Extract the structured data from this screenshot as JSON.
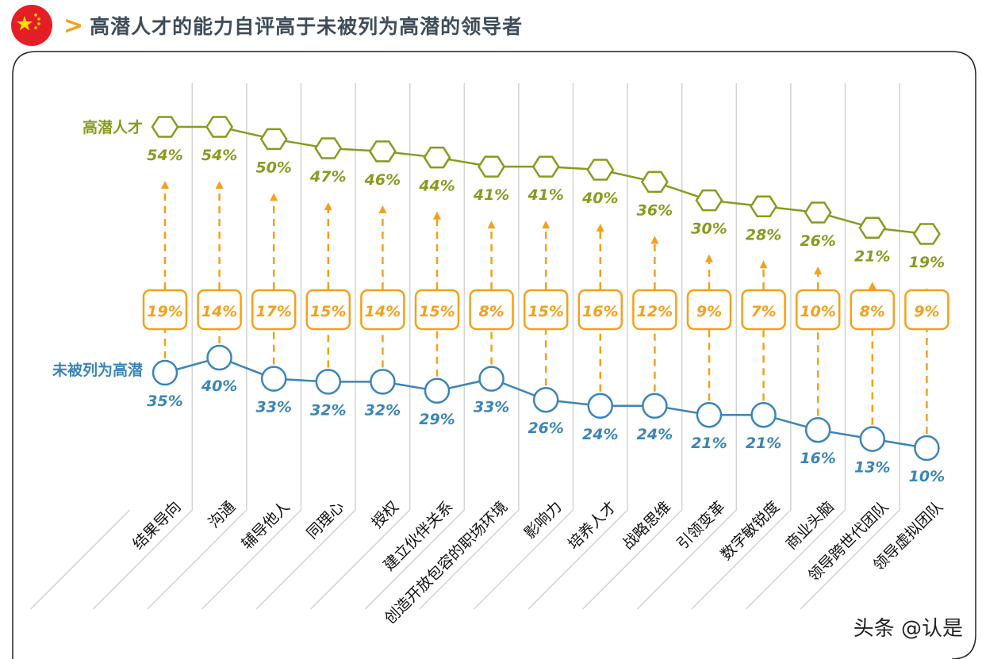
{
  "header": {
    "title": "高潜人才的能力自评高于未被列为高潜的领导者",
    "flag_icon": "china-flag-icon",
    "chevron_icon": "chevron-right-icon"
  },
  "watermark": "头条 @认是",
  "chart_data": {
    "type": "line",
    "title": "高潜人才的能力自评高于未被列为高潜的领导者",
    "categories": [
      "结果导向",
      "沟通",
      "辅导他人",
      "同理心",
      "授权",
      "建立伙伴关系",
      "创造开放包容的职场环境",
      "影响力",
      "培养人才",
      "战略思维",
      "引领变革",
      "数字敏锐度",
      "商业头脑",
      "领导跨世代团队",
      "领导虚拟团队"
    ],
    "series": [
      {
        "name": "高潜人才",
        "values": [
          54,
          54,
          50,
          47,
          46,
          44,
          41,
          41,
          40,
          36,
          30,
          28,
          26,
          21,
          19
        ],
        "color": "#8a9a1e",
        "marker": "hexagon"
      },
      {
        "name": "未被列为高潜",
        "values": [
          35,
          40,
          33,
          32,
          32,
          29,
          33,
          26,
          24,
          24,
          21,
          21,
          16,
          13,
          10
        ],
        "color": "#3a85b8",
        "marker": "circle"
      }
    ],
    "gap_labels": [
      "19%",
      "14%",
      "17%",
      "15%",
      "14%",
      "15%",
      "8%",
      "15%",
      "16%",
      "12%",
      "9%",
      "7%",
      "10%",
      "8%",
      "9%"
    ],
    "gap_color": "#f5a01a",
    "value_format": "%",
    "grid": "vertical separators"
  }
}
